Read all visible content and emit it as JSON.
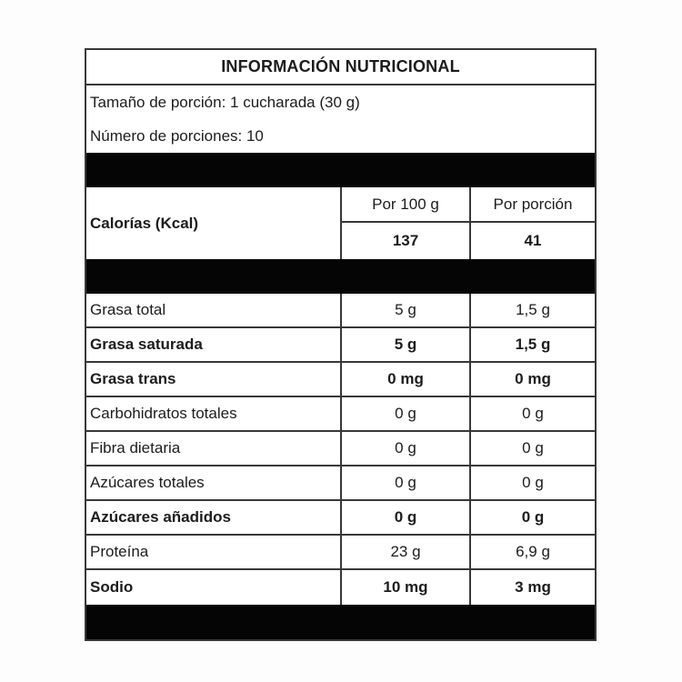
{
  "title": "INFORMACIÓN NUTRICIONAL",
  "serving": {
    "size_label": "Tamaño de porción: 1 cucharada (30 g)",
    "count_label": "Número de porciones: 10"
  },
  "calories": {
    "label": "Calorías (Kcal)",
    "col_per100_header": "Por 100 g",
    "col_portion_header": "Por porción",
    "per100": "137",
    "portion": "41"
  },
  "nutrients": [
    {
      "label": "Grasa total",
      "per100": "5 g",
      "portion": "1,5 g",
      "bold": false,
      "indent": 0
    },
    {
      "label": "Grasa saturada",
      "per100": "5 g",
      "portion": "1,5 g",
      "bold": true,
      "indent": 1
    },
    {
      "label": "Grasa trans",
      "per100": "0 mg",
      "portion": "0 mg",
      "bold": true,
      "indent": 1
    },
    {
      "label": "Carbohidratos totales",
      "per100": "0 g",
      "portion": "0 g",
      "bold": false,
      "indent": 0
    },
    {
      "label": "Fibra dietaria",
      "per100": "0 g",
      "portion": "0 g",
      "bold": false,
      "indent": 1
    },
    {
      "label": "Azúcares totales",
      "per100": "0 g",
      "portion": "0 g",
      "bold": false,
      "indent": 1
    },
    {
      "label": "Azúcares añadidos",
      "per100": "0 g",
      "portion": "0 g",
      "bold": true,
      "indent": 2
    },
    {
      "label": "Proteína",
      "per100": "23 g",
      "portion": "6,9 g",
      "bold": false,
      "indent": 0
    },
    {
      "label": "Sodio",
      "per100": "10 mg",
      "portion": "3 mg",
      "bold": true,
      "indent": 0
    }
  ],
  "colors": {
    "separator_bar": "#050505",
    "border": "#383838",
    "text": "#1c1c1c",
    "background": "#ffffff"
  }
}
